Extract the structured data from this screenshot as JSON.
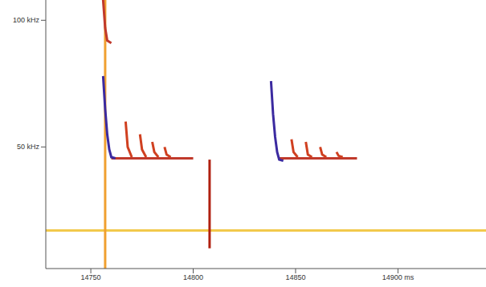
{
  "chart_data": {
    "type": "line",
    "xlim": [
      14728,
      14943
    ],
    "ylim": [
      2,
      108
    ],
    "xticks": [
      14750,
      14800,
      14850,
      {
        "value": 14900,
        "label": "14900 ms"
      }
    ],
    "yticks": [
      {
        "value": 50,
        "label": "50 kHz"
      },
      {
        "value": 100,
        "label": "100 kHz"
      }
    ],
    "grid": false,
    "marker": "none",
    "series": [
      {
        "color": "#f2c94c",
        "x": [
          14728,
          14943
        ],
        "values": [
          17,
          17
        ]
      },
      {
        "color": "#f0a030",
        "x": [
          14757,
          14757
        ],
        "values": [
          2,
          108
        ]
      },
      {
        "color": "#c0392b",
        "x": [
          14756,
          14757,
          14758,
          14760
        ],
        "values": [
          108,
          97,
          92,
          91
        ]
      },
      {
        "color": "#c0392b",
        "x": [
          14760,
          14770,
          14780,
          14790,
          14800
        ],
        "values": [
          45.5,
          45.5,
          45.5,
          45.5,
          45.5
        ]
      },
      {
        "color": "#3b2aa0",
        "x": [
          14756,
          14757,
          14758,
          14759,
          14760,
          14762
        ],
        "values": [
          78,
          65,
          55,
          49,
          46,
          45.5
        ]
      },
      {
        "color": "#d04020",
        "x": [
          14767,
          14768,
          14770
        ],
        "values": [
          60,
          50,
          46
        ]
      },
      {
        "color": "#d04020",
        "x": [
          14774,
          14775,
          14777
        ],
        "values": [
          55,
          49,
          46
        ]
      },
      {
        "color": "#d04020",
        "x": [
          14780,
          14781,
          14783
        ],
        "values": [
          52,
          48,
          46
        ]
      },
      {
        "color": "#d04020",
        "x": [
          14786,
          14787,
          14789
        ],
        "values": [
          50,
          47,
          46
        ]
      },
      {
        "color": "#b02010",
        "x": [
          14808,
          14808
        ],
        "values": [
          45,
          10
        ]
      },
      {
        "color": "#c0392b",
        "x": [
          14842,
          14850,
          14860,
          14870,
          14880
        ],
        "values": [
          45.5,
          45.5,
          45.5,
          45.5,
          45.5
        ]
      },
      {
        "color": "#3b2aa0",
        "x": [
          14838,
          14839,
          14840,
          14841,
          14842,
          14844
        ],
        "values": [
          76,
          63,
          54,
          48,
          45,
          44.5
        ]
      },
      {
        "color": "#d04020",
        "x": [
          14848,
          14849,
          14851
        ],
        "values": [
          53,
          48,
          46
        ]
      },
      {
        "color": "#d04020",
        "x": [
          14855,
          14856,
          14858
        ],
        "values": [
          52,
          47,
          46
        ]
      },
      {
        "color": "#d04020",
        "x": [
          14862,
          14863,
          14865
        ],
        "values": [
          50,
          47,
          46
        ]
      },
      {
        "color": "#d04020",
        "x": [
          14870,
          14871,
          14873
        ],
        "values": [
          48,
          46.5,
          46
        ]
      }
    ]
  }
}
